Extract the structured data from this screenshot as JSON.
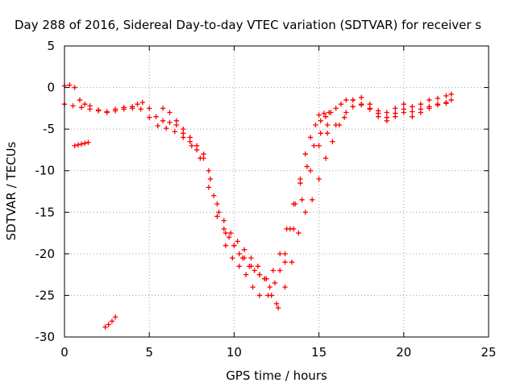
{
  "chart_data": {
    "type": "scatter",
    "title": "Day 288 of 2016, Sidereal Day-to-day VTEC variation (SDTVAR) for receiver s",
    "xlabel": "GPS time / hours",
    "ylabel": "SDTVAR / TECUs",
    "xlim": [
      0,
      25
    ],
    "ylim": [
      -30,
      5
    ],
    "x_ticks": [
      0,
      5,
      10,
      15,
      20,
      25
    ],
    "y_ticks": [
      -30,
      -25,
      -20,
      -15,
      -10,
      -5,
      0,
      5
    ],
    "x_tick_labels": [
      "0",
      "5",
      "10",
      "15",
      "20",
      "25"
    ],
    "y_tick_labels": [
      "-30",
      "-25",
      "-20",
      "-15",
      "-10",
      "-5",
      "0",
      "5"
    ],
    "grid": true,
    "marker": "plus",
    "color": "#ff0000",
    "series": [
      {
        "x": [
          0.0,
          0.3,
          0.6,
          0.9,
          1.2,
          1.5,
          2.0,
          2.5,
          3.0,
          3.5,
          4.0,
          4.3,
          4.6,
          5.0,
          5.4,
          5.8,
          6.2,
          6.6,
          7.0,
          7.4,
          7.8,
          8.2,
          8.5,
          8.8,
          9.1,
          9.4,
          9.7,
          10.0,
          10.3,
          10.6,
          10.9,
          11.2,
          11.5,
          11.8,
          12.1,
          12.4,
          12.7,
          13.0,
          13.3,
          13.6,
          13.9,
          14.2,
          14.5,
          14.8,
          15.1,
          15.4,
          15.7,
          16.0,
          16.3,
          16.6,
          17.0,
          17.5,
          18.0,
          18.5,
          19.0,
          19.5,
          20.0,
          20.5,
          21.0,
          21.5,
          22.0,
          22.5,
          22.8
        ],
        "y": [
          0.2,
          0.3,
          0.0,
          -1.5,
          -2.0,
          -2.2,
          -2.8,
          -3.0,
          -2.8,
          -2.6,
          -2.5,
          -2.0,
          -1.8,
          -2.5,
          -3.5,
          -4.0,
          -4.2,
          -4.5,
          -5.5,
          -6.5,
          -7.5,
          -8.0,
          -10.0,
          -13.0,
          -15.0,
          -17.0,
          -18.0,
          -19.0,
          -20.0,
          -20.5,
          -21.5,
          -22.0,
          -22.5,
          -23.0,
          -24.0,
          -23.5,
          -22.0,
          -20.0,
          -17.0,
          -14.0,
          -11.0,
          -8.0,
          -6.0,
          -4.5,
          -4.0,
          -3.5,
          -3.0,
          -2.5,
          -2.0,
          -1.5,
          -1.5,
          -2.0,
          -2.5,
          -2.8,
          -3.0,
          -2.5,
          -2.0,
          -2.3,
          -2.0,
          -1.5,
          -1.3,
          -1.0,
          -0.8
        ]
      },
      {
        "x": [
          0.0,
          0.5,
          1.0,
          1.5,
          2.0,
          2.5,
          3.0,
          3.5,
          4.0,
          4.5,
          5.0,
          5.5,
          6.0,
          6.5,
          7.0,
          7.5,
          8.0,
          8.5,
          9.0,
          9.5,
          10.0,
          10.5,
          11.0,
          11.5,
          12.0,
          12.5,
          13.0,
          13.5,
          14.0,
          14.5,
          15.0,
          15.5,
          16.0,
          16.5,
          17.0,
          17.5,
          18.0,
          18.5,
          19.0,
          19.5,
          20.0,
          20.5,
          21.0,
          21.5,
          22.0,
          22.5
        ],
        "y": [
          -2.0,
          -2.2,
          -2.4,
          -2.6,
          -2.7,
          -2.9,
          -2.6,
          -2.4,
          -2.3,
          -2.6,
          -3.6,
          -4.6,
          -4.9,
          -5.3,
          -6.0,
          -7.0,
          -8.5,
          -12.0,
          -15.5,
          -17.5,
          -19.0,
          -20.5,
          -21.5,
          -22.5,
          -25.0,
          -26.0,
          -21.0,
          -17.0,
          -13.5,
          -10.0,
          -7.0,
          -5.5,
          -4.5,
          -3.6,
          -2.3,
          -2.1,
          -2.6,
          -3.1,
          -3.6,
          -3.1,
          -2.6,
          -2.9,
          -2.6,
          -2.3,
          -2.1,
          -1.9
        ]
      },
      {
        "x": [
          5.8,
          6.2,
          6.6,
          7.0,
          7.4,
          7.8,
          8.2,
          8.6,
          9.0,
          9.4,
          9.8,
          10.2,
          10.6,
          11.0,
          11.4,
          11.8,
          12.2,
          12.6,
          13.0,
          13.4,
          13.8,
          14.2,
          14.6,
          15.0,
          15.4,
          15.8,
          16.2,
          16.6,
          17.0,
          17.5,
          18.0,
          18.5,
          19.0,
          19.5,
          20.0,
          20.5,
          21.0,
          21.5,
          22.0,
          22.5,
          22.8
        ],
        "y": [
          -2.5,
          -3.0,
          -4.0,
          -5.0,
          -6.0,
          -7.0,
          -8.5,
          -11.0,
          -14.0,
          -16.0,
          -17.5,
          -18.5,
          -19.5,
          -20.5,
          -21.5,
          -23.0,
          -25.0,
          -26.5,
          -24.0,
          -21.0,
          -17.5,
          -15.0,
          -13.5,
          -11.0,
          -8.5,
          -6.5,
          -4.5,
          -3.0,
          -1.5,
          -1.2,
          -2.0,
          -3.5,
          -4.0,
          -3.5,
          -3.0,
          -3.5,
          -3.0,
          -2.5,
          -2.0,
          -1.8,
          -1.5
        ]
      },
      {
        "x": [
          9.5,
          9.9,
          10.3,
          10.7,
          11.1,
          11.5,
          11.9,
          12.3,
          12.7,
          13.1,
          13.5,
          13.9,
          14.3,
          14.7,
          15.1,
          15.5
        ],
        "y": [
          -19.0,
          -20.5,
          -21.5,
          -22.5,
          -24.0,
          -25.0,
          -23.0,
          -22.0,
          -20.0,
          -17.0,
          -14.0,
          -11.5,
          -9.5,
          -7.0,
          -5.5,
          -4.5
        ]
      },
      {
        "x": [
          0.6,
          0.8,
          1.0,
          1.2,
          1.4
        ],
        "y": [
          -7.0,
          -6.9,
          -6.8,
          -6.7,
          -6.6
        ]
      },
      {
        "x": [
          2.4,
          2.6,
          2.8,
          3.0
        ],
        "y": [
          -28.8,
          -28.5,
          -28.1,
          -27.6
        ]
      },
      {
        "x": [
          15.0,
          15.3,
          15.6
        ],
        "y": [
          -3.3,
          -3.1,
          -3.0
        ]
      }
    ]
  }
}
